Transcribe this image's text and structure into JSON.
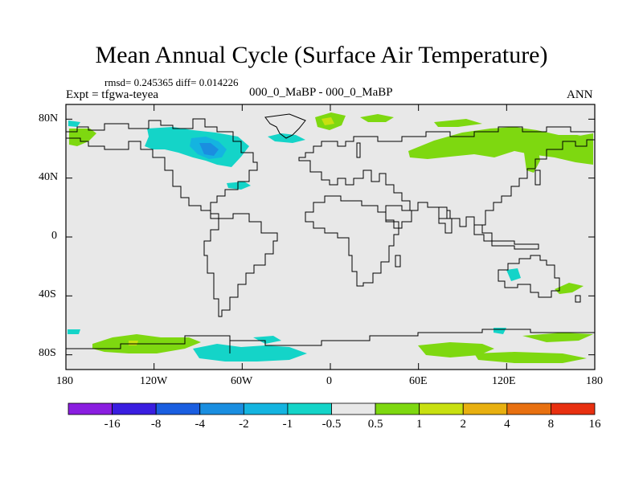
{
  "title": "Mean Annual Cycle (Surface Air Temperature)",
  "stats_line": "rmsd= 0.245365 diff= 0.014226",
  "expt_label": "Expt = tfgwa-teyea",
  "comparison": "000_0_MaBP - 000_0_MaBP",
  "season": "ANN",
  "lat_ticks": [
    "80N",
    "40N",
    "0",
    "40S",
    "80S"
  ],
  "lon_ticks": [
    "180",
    "120W",
    "60W",
    "0",
    "60E",
    "120E",
    "180"
  ],
  "colorbar": {
    "labels": [
      "-16",
      "-8",
      "-4",
      "-2",
      "-1",
      "-0.5",
      "0.5",
      "1",
      "2",
      "4",
      "8",
      "16"
    ],
    "colors": [
      "#8a1ee0",
      "#3a1ee0",
      "#1a5ee0",
      "#1a8ee0",
      "#14b4e0",
      "#14d4c8",
      "#e8e8e8",
      "#7ed810",
      "#c8e010",
      "#e8b010",
      "#e87010",
      "#e83010"
    ]
  },
  "colors": {
    "ocean_neutral": "#e8e8e8",
    "warm_anomaly": "#7ed810",
    "cool_anomaly": "#14d4c8",
    "cool_strong": "#14b4e0",
    "cool_stronger": "#1a8ee0",
    "warm_mid": "#c8e010",
    "warm_high": "#e8b010"
  }
}
